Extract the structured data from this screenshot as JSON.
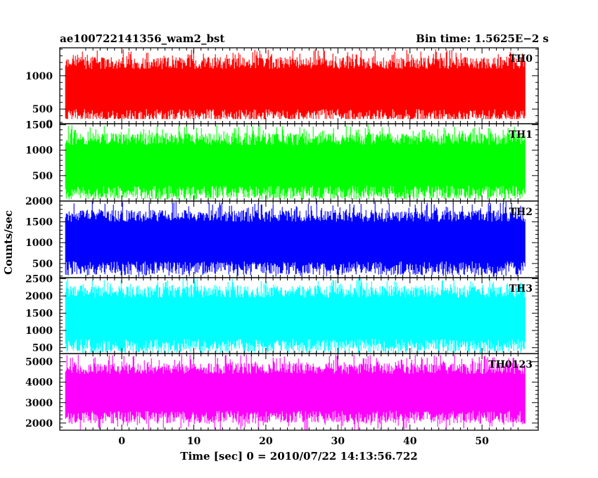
{
  "chart_data": {
    "type": "line",
    "title": "ae100722141356_wam2_bst",
    "subtitle": "Bin time: 1.5625E−2 s",
    "xlabel": "Time [sec] 0 = 2010/07/22 14:13:56.722",
    "ylabel": "Counts/sec",
    "xlim": [
      -8.6,
      57.8
    ],
    "x_range_of_data": [
      -7.8,
      56.0
    ],
    "xticks": [
      "0",
      "10",
      "20",
      "30",
      "40",
      "50"
    ],
    "panels": [
      {
        "name": "TH0",
        "color": "#ff0000",
        "ylim": [
          280,
          1420
        ],
        "yticks": [
          "500",
          "1000"
        ],
        "extra_tick": "0",
        "band": [
          500,
          1100
        ],
        "min": 350,
        "max": 1400
      },
      {
        "name": "TH1",
        "color": "#00ff00",
        "ylim": [
          0,
          1520
        ],
        "yticks": [
          "500",
          "1000",
          "1500"
        ],
        "band": [
          300,
          1100
        ],
        "min": 30,
        "max": 1500
      },
      {
        "name": "TH2",
        "color": "#0000ff",
        "ylim": [
          160,
          2000
        ],
        "yticks": [
          "500",
          "1000",
          "1500",
          "2000"
        ],
        "band": [
          550,
          1500
        ],
        "min": 180,
        "max": 1990
      },
      {
        "name": "TH3",
        "color": "#00ffff",
        "ylim": [
          330,
          2530
        ],
        "yticks": [
          "500",
          "1000",
          "1500",
          "2000",
          "2500"
        ],
        "band": [
          750,
          1950
        ],
        "min": 350,
        "max": 2520
      },
      {
        "name": "TH0123",
        "color": "#ff00ff",
        "ylim": [
          1650,
          5400
        ],
        "yticks": [
          "2000",
          "3000",
          "4000",
          "5000"
        ],
        "band": [
          2600,
          4400
        ],
        "min": 1650,
        "max": 5350
      }
    ]
  }
}
